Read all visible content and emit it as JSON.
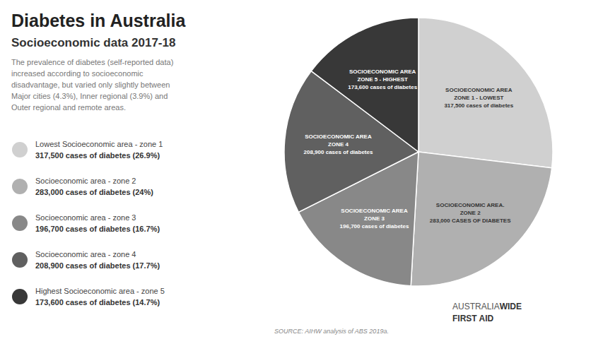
{
  "chart_data": {
    "type": "pie",
    "title": "Diabetes in Australia",
    "subtitle": "Socioeconomic data 2017-18",
    "description": "The prevalence of diabetes (self-reported data)\nincreased according to socioeconomic\ndisadvantage, but varied only slightly between\nMajor cities (4.3%), Inner regional (3.9%) and\nOuter regional and remote areas.",
    "source": "SOURCE: AIHW analysis of ABS 2019a.",
    "categories": [
      "Lowest Socioeconomic area - zone 1",
      "Socioeconomic area - zone 2",
      "Socioeconomic area - zone 3",
      "Socioeconomic area - zone 4",
      "Highest Socioeconomic area - zone 5"
    ],
    "legend_details": [
      "317,500 cases of diabetes (26.9%)",
      "283,000 cases of diabetes (24%)",
      "196,700 cases of diabetes (16.7%)",
      "208,900 cases of diabetes (17.7%)",
      "173,600 cases of diabetes (14.7%)"
    ],
    "values": [
      317500,
      283000,
      196700,
      208900,
      173600
    ],
    "value_labels": [
      "SOCIOECONOMIC AREA\nZONE 1 - LOWEST\n317,500 cases of diabetes",
      "SOCIOECONOMIC AREA.\nZONE 2\n283,000 CASES OF DIABETES",
      "SOCIOECONOMIC AREA\nZONE 3\n196,700 cases of diabetes",
      "SOCIOECONOMIC AREA\nZONE 4\n208,900 cases of diabetes",
      "SOCIOECONOMIC AREA\nZONE 5 - HIGHEST\n173,600 cases of diabetes"
    ],
    "data_labels": true,
    "colors": [
      "#d0d0d0",
      "#b0b0b0",
      "#888888",
      "#606060",
      "#383838"
    ],
    "annotations": [
      "AUSTRALIA",
      "WIDE",
      "FIRST AID"
    ]
  }
}
